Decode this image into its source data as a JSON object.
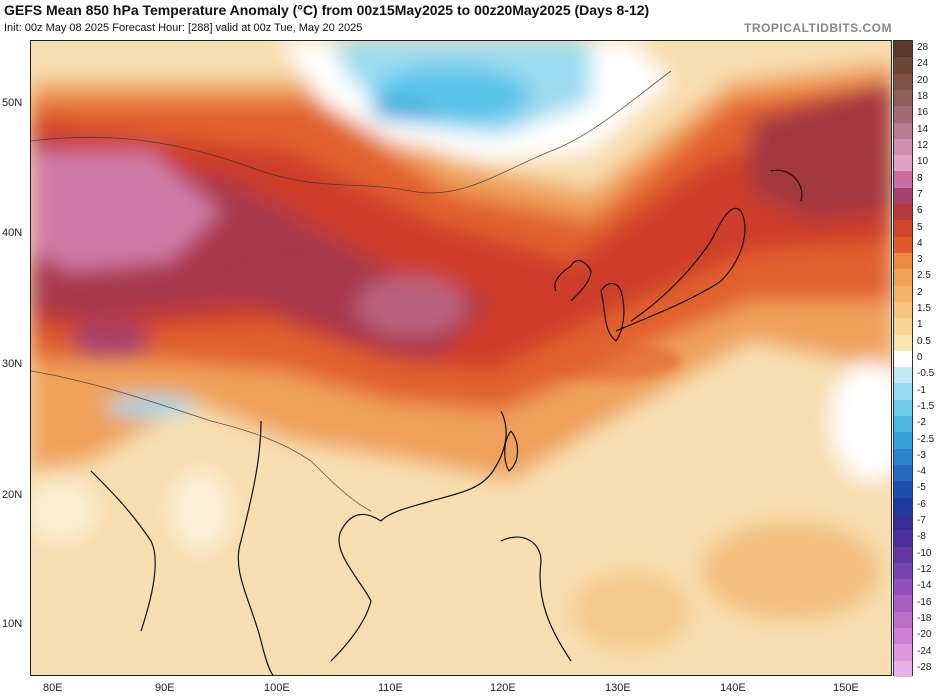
{
  "header": {
    "title": "GEFS Mean 850 hPa Temperature Anomaly (°C) from 00z15May2025 to 00z20May2025 (Days 8-12)",
    "subtitle": "Init: 00z May 08 2025   Forecast Hour: [288]   valid at 00z Tue, May 20 2025",
    "brand": "TROPICALTIDBITS.COM"
  },
  "axes": {
    "lat_labels": [
      "50N",
      "40N",
      "30N",
      "20N",
      "10N"
    ],
    "lon_labels": [
      "80E",
      "90E",
      "100E",
      "110E",
      "120E",
      "130E",
      "140E",
      "150E"
    ]
  },
  "colorbar": {
    "labels": [
      "28",
      "24",
      "20",
      "18",
      "16",
      "14",
      "12",
      "10",
      "8",
      "7",
      "6",
      "5",
      "4",
      "3",
      "2.5",
      "2",
      "1.5",
      "1",
      "0.5",
      "0",
      "-0.5",
      "-1",
      "-1.5",
      "-2",
      "-2.5",
      "-3",
      "-4",
      "-5",
      "-6",
      "-7",
      "-8",
      "-10",
      "-12",
      "-14",
      "-16",
      "-18",
      "-20",
      "-24",
      "-28"
    ],
    "colors": [
      "#5c3a2a",
      "#6e4635",
      "#7f5244",
      "#8f5f55",
      "#a36b72",
      "#b87d90",
      "#cf90ad",
      "#e2a0c2",
      "#c96da0",
      "#a8416b",
      "#b83b3c",
      "#d4442c",
      "#e25a2a",
      "#ee8a3d",
      "#f2a052",
      "#f4b366",
      "#f6c47c",
      "#f8d592",
      "#f9e4b0",
      "#ffffff",
      "#bfe9f5",
      "#96dcf0",
      "#6ccbeb",
      "#4ab7e4",
      "#35a1db",
      "#2b85cd",
      "#2269bf",
      "#1c4fb0",
      "#1d3aa0",
      "#332d98",
      "#4b2f9c",
      "#6437a4",
      "#7b43ad",
      "#9350b8",
      "#a95ec2",
      "#bd6dcc",
      "#ce80d6",
      "#dd96df",
      "#eaaee8"
    ]
  }
}
